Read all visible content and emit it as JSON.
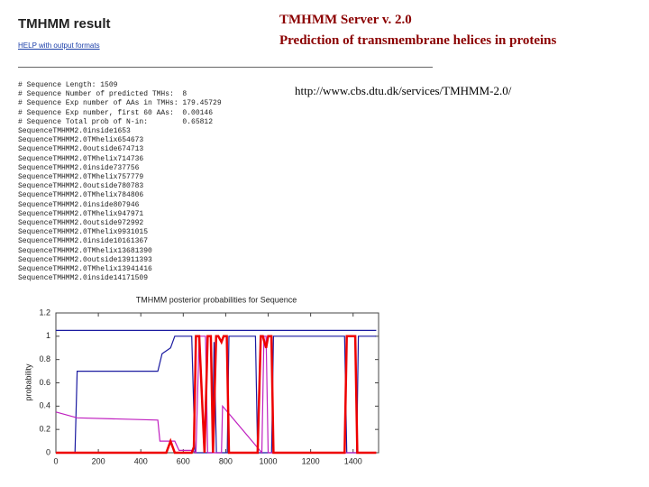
{
  "header": {
    "result_title": "TMHMM result",
    "help_link": "HELP with output formats",
    "server": "TMHMM Server v. 2.0",
    "subtitle": "Prediction of transmembrane helices in proteins",
    "url": "http://www.cbs.dtu.dk/services/TMHMM-2.0/"
  },
  "results": {
    "comments": [
      "# Sequence Length: 1509",
      "# Sequence Number of predicted TMHs:  8",
      "# Sequence Exp number of AAs in TMHs: 179.45729",
      "# Sequence Exp number, first 60 AAs:  0.00146",
      "# Sequence Total prob of N-in:        0.65812"
    ],
    "rows": [
      [
        "Sequence",
        "TMHMM2.0",
        "inside",
        1,
        653
      ],
      [
        "Sequence",
        "TMHMM2.0",
        "TMhelix",
        654,
        673
      ],
      [
        "Sequence",
        "TMHMM2.0",
        "outside",
        674,
        713
      ],
      [
        "Sequence",
        "TMHMM2.0",
        "TMhelix",
        714,
        736
      ],
      [
        "Sequence",
        "TMHMM2.0",
        "inside",
        737,
        756
      ],
      [
        "Sequence",
        "TMHMM2.0",
        "TMhelix",
        757,
        779
      ],
      [
        "Sequence",
        "TMHMM2.0",
        "outside",
        780,
        783
      ],
      [
        "Sequence",
        "TMHMM2.0",
        "TMhelix",
        784,
        806
      ],
      [
        "Sequence",
        "TMHMM2.0",
        "inside",
        807,
        946
      ],
      [
        "Sequence",
        "TMHMM2.0",
        "TMhelix",
        947,
        971
      ],
      [
        "Sequence",
        "TMHMM2.0",
        "outside",
        972,
        992
      ],
      [
        "Sequence",
        "TMHMM2.0",
        "TMhelix",
        993,
        1015
      ],
      [
        "Sequence",
        "TMHMM2.0",
        "inside",
        1016,
        1367
      ],
      [
        "Sequence",
        "TMHMM2.0",
        "TMhelix",
        1368,
        1390
      ],
      [
        "Sequence",
        "TMHMM2.0",
        "outside",
        1391,
        1393
      ],
      [
        "Sequence",
        "TMHMM2.0",
        "TMhelix",
        1394,
        1416
      ],
      [
        "Sequence",
        "TMHMM2.0",
        "inside",
        1417,
        1509
      ]
    ]
  },
  "chart_data": {
    "type": "line",
    "title": "TMHMM posterior probabilities for Sequence",
    "y_label": "probability",
    "xlim": [
      0,
      1520
    ],
    "xticks": [
      0,
      200,
      400,
      600,
      800,
      1000,
      1200,
      1400
    ],
    "ylim": [
      0,
      1.2
    ],
    "yticks": [
      0,
      0.2,
      0.4,
      0.6,
      0.8,
      1,
      1.2
    ],
    "series": [
      {
        "color": "#1a1aa0",
        "x": [
          0,
          1509
        ],
        "values": [
          1.05,
          1.05
        ]
      },
      {
        "color": "#1a1aa0",
        "x": [
          0,
          90,
          100,
          480,
          500,
          540,
          560,
          640,
          655,
          700,
          737,
          745,
          756,
          800,
          807,
          815,
          940,
          950,
          1010,
          1016,
          1025,
          1360,
          1370,
          1410,
          1417,
          1425,
          1509
        ],
        "values": [
          0,
          0,
          0.7,
          0.7,
          0.85,
          0.9,
          1,
          1,
          0,
          0,
          0,
          0.95,
          0,
          0,
          0,
          1,
          1,
          0,
          0,
          0,
          1,
          1,
          0,
          0,
          0,
          1,
          1
        ]
      },
      {
        "color": "#c020c0",
        "x": [
          0,
          100,
          480,
          490,
          560,
          580,
          640,
          660,
          675,
          705,
          715,
          780,
          785,
          970,
          980,
          990,
          1000,
          1509
        ],
        "values": [
          0.35,
          0.3,
          0.28,
          0.1,
          0.1,
          0.02,
          0.02,
          0,
          1,
          1,
          0,
          0,
          0.4,
          0,
          1,
          1,
          0,
          0
        ]
      },
      {
        "color": "#ee0000",
        "x": [
          0,
          520,
          540,
          560,
          640,
          650,
          660,
          675,
          690,
          700,
          715,
          730,
          740,
          755,
          765,
          780,
          790,
          805,
          815,
          940,
          950,
          965,
          975,
          990,
          1000,
          1015,
          1025,
          1360,
          1370,
          1385,
          1395,
          1410,
          1420,
          1509
        ],
        "values": [
          0,
          0,
          0.1,
          0,
          0,
          0.05,
          1,
          1,
          0.4,
          0,
          1,
          1,
          0,
          1,
          1,
          0.95,
          1,
          1,
          0,
          0,
          0,
          1,
          1,
          0.9,
          1,
          1,
          0,
          0,
          1,
          1,
          1,
          1,
          0,
          0
        ]
      }
    ]
  }
}
